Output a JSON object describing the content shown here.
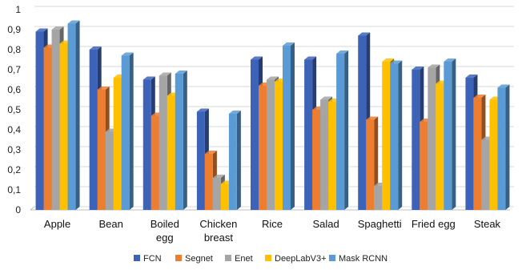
{
  "chart_data": {
    "type": "bar",
    "style": "3d-clustered-column",
    "categories": [
      [
        "Apple"
      ],
      [
        "Bean"
      ],
      [
        "Boiled",
        "egg"
      ],
      [
        "Chicken",
        "breast"
      ],
      [
        "Rice"
      ],
      [
        "Salad"
      ],
      [
        "Spaghetti"
      ],
      [
        "Fried egg"
      ],
      [
        "Steak"
      ]
    ],
    "series": [
      {
        "name": "FCN",
        "color": "#3d63b8",
        "values": [
          0.89,
          0.8,
          0.65,
          0.49,
          0.75,
          0.75,
          0.87,
          0.7,
          0.66
        ]
      },
      {
        "name": "Segnet",
        "color": "#ed7d31",
        "values": [
          0.81,
          0.6,
          0.47,
          0.28,
          0.62,
          0.5,
          0.45,
          0.44,
          0.56
        ]
      },
      {
        "name": "Enet",
        "color": "#a5a5a5",
        "values": [
          0.9,
          0.39,
          0.67,
          0.16,
          0.65,
          0.55,
          0.12,
          0.71,
          0.35
        ]
      },
      {
        "name": "DeepLabV3+",
        "color": "#ffc000",
        "values": [
          0.83,
          0.66,
          0.57,
          0.13,
          0.64,
          0.54,
          0.74,
          0.63,
          0.55
        ]
      },
      {
        "name": "Mask RCNN",
        "color": "#5b9bd5",
        "values": [
          0.93,
          0.77,
          0.68,
          0.48,
          0.82,
          0.78,
          0.73,
          0.74,
          0.61
        ]
      }
    ],
    "y_ticks": [
      "0",
      "0,1",
      "0,2",
      "0,3",
      "0,4",
      "0,5",
      "0,6",
      "0,7",
      "0,8",
      "0,9",
      "1"
    ],
    "ylim": [
      0,
      1
    ],
    "grid": true,
    "legend": "bottom"
  }
}
